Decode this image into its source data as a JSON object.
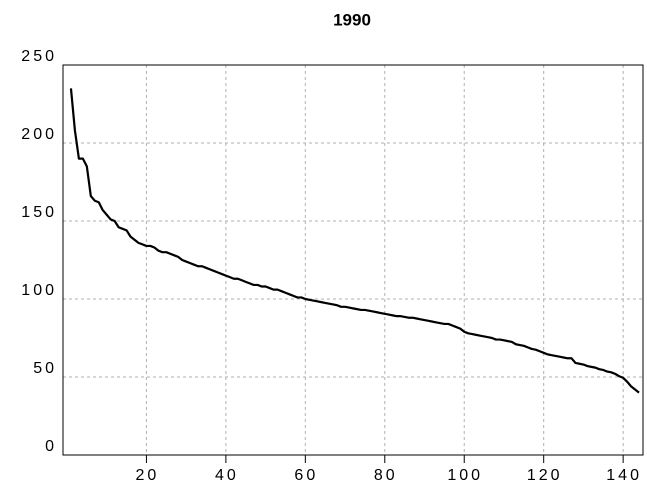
{
  "chart_data": {
    "type": "line",
    "title": "1990",
    "x": [
      1,
      2,
      3,
      4,
      5,
      6,
      7,
      8,
      9,
      10,
      11,
      12,
      13,
      14,
      15,
      16,
      17,
      18,
      19,
      20,
      21,
      22,
      23,
      24,
      25,
      26,
      27,
      28,
      29,
      30,
      31,
      32,
      33,
      34,
      35,
      36,
      37,
      38,
      39,
      40,
      41,
      42,
      43,
      44,
      45,
      46,
      47,
      48,
      49,
      50,
      51,
      52,
      53,
      54,
      55,
      56,
      57,
      58,
      59,
      60,
      61,
      62,
      63,
      64,
      65,
      66,
      67,
      68,
      69,
      70,
      71,
      72,
      73,
      74,
      75,
      76,
      77,
      78,
      79,
      80,
      81,
      82,
      83,
      84,
      85,
      86,
      87,
      88,
      89,
      90,
      91,
      92,
      93,
      94,
      95,
      96,
      97,
      98,
      99,
      100,
      101,
      102,
      103,
      104,
      105,
      106,
      107,
      108,
      109,
      110,
      111,
      112,
      113,
      114,
      115,
      116,
      117,
      118,
      119,
      120,
      121,
      122,
      123,
      124,
      125,
      126,
      127,
      128,
      129,
      130,
      131,
      132,
      133,
      134,
      135,
      136,
      137,
      138,
      139,
      140,
      141,
      142,
      143,
      144
    ],
    "values": [
      235,
      208,
      190,
      190,
      185,
      166,
      163,
      162,
      157,
      154,
      151,
      150,
      146,
      145,
      144,
      140,
      138,
      136,
      135,
      134,
      134,
      133,
      131,
      130,
      130,
      129,
      128,
      127,
      125,
      124,
      123,
      122,
      121,
      121,
      120,
      119,
      118,
      117,
      116,
      115,
      114,
      113,
      113,
      112,
      111,
      110,
      109,
      109,
      108,
      108,
      107,
      106,
      106,
      105,
      104,
      103,
      102,
      101,
      101,
      100,
      99.5,
      99,
      98.5,
      98,
      97.5,
      97,
      96.5,
      96,
      95,
      95,
      94.5,
      94,
      93.5,
      93,
      93,
      92.5,
      92,
      91.5,
      91,
      90.5,
      90,
      89.5,
      89,
      89,
      88.5,
      88,
      88,
      87.5,
      87,
      86.5,
      86,
      85.5,
      85,
      84.5,
      84,
      84,
      83,
      82,
      81,
      79,
      78,
      77.5,
      77,
      76.5,
      76,
      75.5,
      75,
      74,
      74,
      73.5,
      73,
      72.5,
      71,
      70.5,
      70,
      69,
      68,
      67.5,
      66.5,
      65.5,
      64.5,
      64,
      63.5,
      63,
      62.5,
      62,
      62,
      59,
      58.5,
      58,
      57,
      56.5,
      56,
      55,
      54.5,
      53.5,
      53,
      52,
      50.5,
      49.5,
      47,
      44,
      42,
      40
    ],
    "color": "#000000",
    "xlim": [
      -1,
      145
    ],
    "xticks": [
      20,
      40,
      60,
      80,
      100,
      120,
      140
    ],
    "ylim": [
      0,
      250
    ],
    "yticks": [
      0,
      50,
      100,
      150,
      200,
      250
    ],
    "grid": true
  }
}
